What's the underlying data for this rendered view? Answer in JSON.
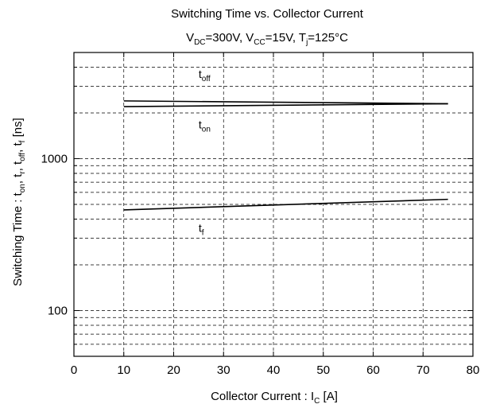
{
  "chart_data": {
    "type": "line",
    "title": "Switching Time vs. Collector Current",
    "subtitle": {
      "v": "V",
      "dc": "DC",
      "eq1": "=300V, ",
      "v2": "V",
      "cc": "CC",
      "eq2": "=15V, ",
      "t": "T",
      "j": "j",
      "eq3": "=125°C"
    },
    "xlabel": {
      "main": "Collector Current  :  I",
      "sub": "C",
      "unit": "  [A]"
    },
    "ylabel": {
      "p1": "Switching Time : t",
      "s1": "on",
      "p2": ", t",
      "s2": "r",
      "p3": ", t",
      "s3": "off",
      "p4": ", t",
      "s4": "f",
      "p5": " [ns]"
    },
    "xlim": [
      0,
      80
    ],
    "ylim": [
      50,
      5000
    ],
    "yscale": "log",
    "grid": true,
    "x_ticks": [
      "0",
      "10",
      "20",
      "30",
      "40",
      "50",
      "60",
      "70",
      "80"
    ],
    "y_ticks": [
      "100",
      "1000"
    ],
    "series": [
      {
        "name": "t_off",
        "x": [
          10,
          75
        ],
        "y": [
          2400,
          2300
        ]
      },
      {
        "name": "t_on",
        "x": [
          10,
          75
        ],
        "y": [
          2200,
          2300
        ]
      },
      {
        "name": "t_f",
        "x": [
          10,
          75
        ],
        "y": [
          460,
          540
        ]
      }
    ],
    "annotations": [
      {
        "main": "t",
        "sub": "off",
        "x": 25,
        "y": 3400
      },
      {
        "main": "t",
        "sub": "on",
        "x": 25,
        "y": 1580
      },
      {
        "main": "t",
        "sub": "f",
        "x": 25,
        "y": 330
      }
    ]
  }
}
